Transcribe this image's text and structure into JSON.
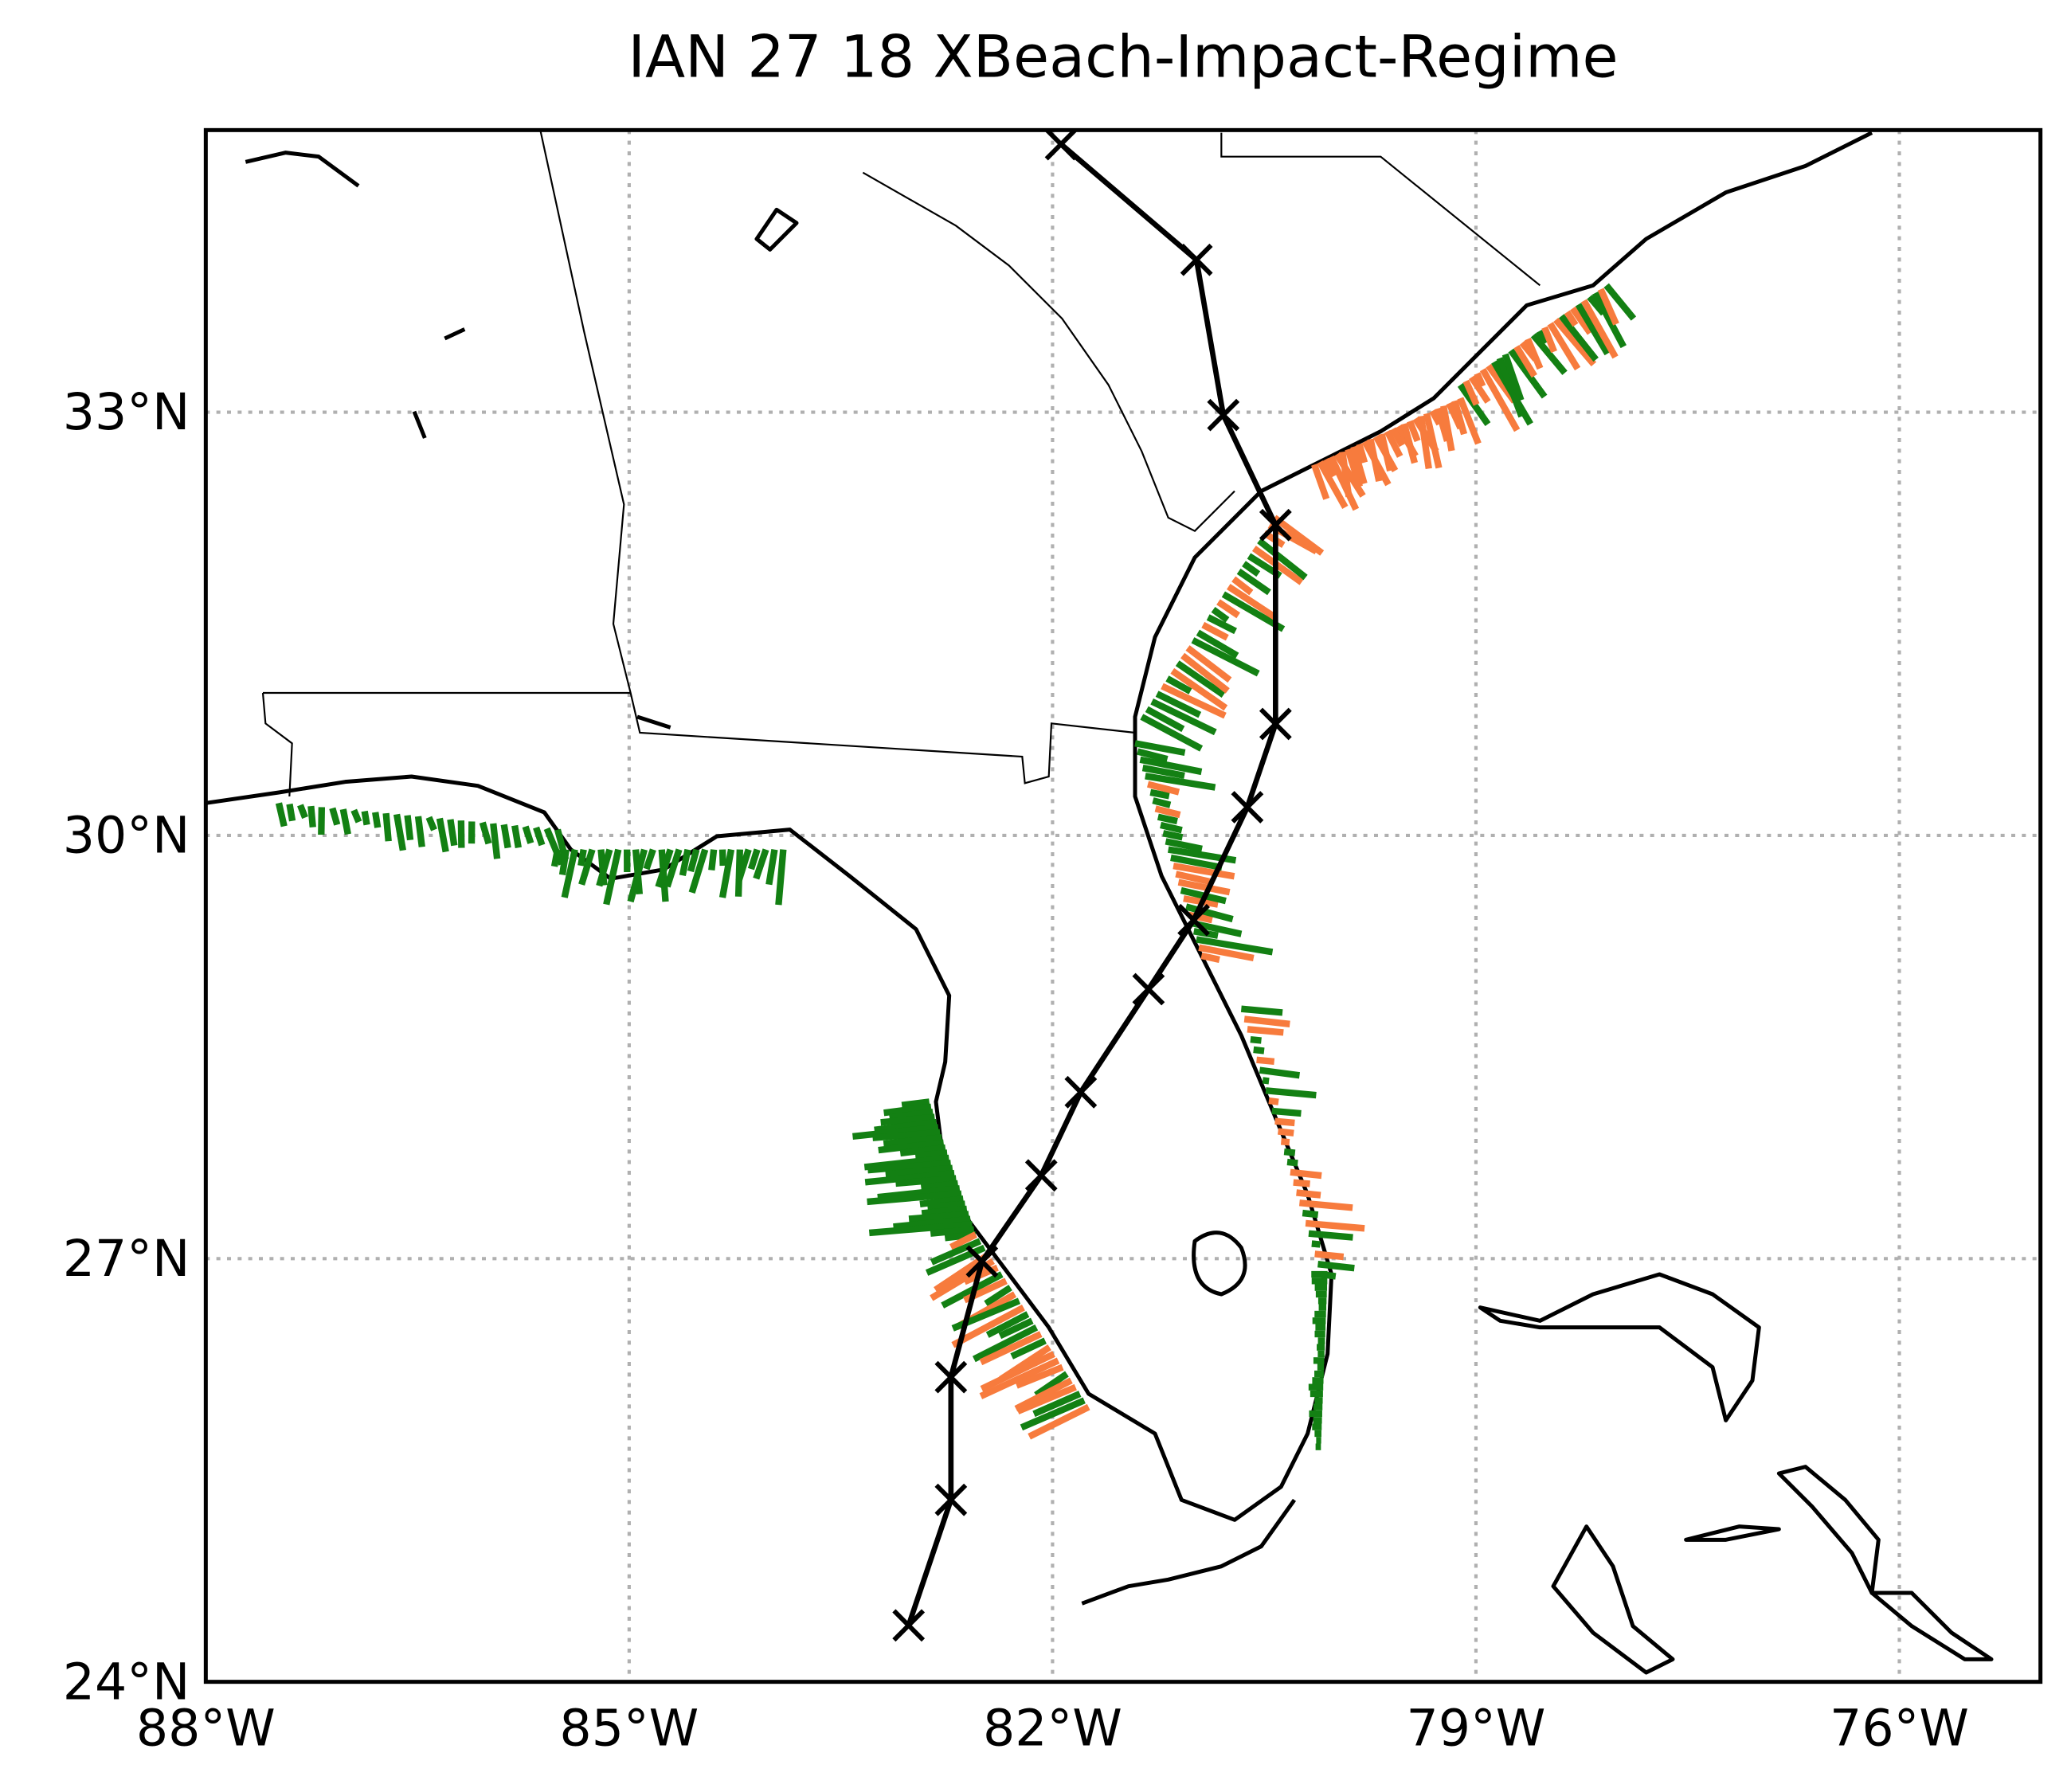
{
  "map": {
    "type": "map",
    "title": "IAN 27 18 XBeach-Impact-Regime",
    "xlim": [
      -88,
      -75
    ],
    "ylim": [
      24,
      35
    ],
    "xticks": [
      {
        "value": -88,
        "label": "88°W"
      },
      {
        "value": -85,
        "label": "85°W"
      },
      {
        "value": -82,
        "label": "82°W"
      },
      {
        "value": -79,
        "label": "79°W"
      },
      {
        "value": -76,
        "label": "76°W"
      }
    ],
    "yticks": [
      {
        "value": 24,
        "label": "24°N"
      },
      {
        "value": 27,
        "label": "27°N"
      },
      {
        "value": 30,
        "label": "30°N"
      },
      {
        "value": 33,
        "label": "33°N"
      }
    ],
    "grid": true,
    "track": {
      "color": "#000000",
      "lon": [
        -81.94,
        -80.98,
        -80.79,
        -80.42,
        -80.42,
        -80.62,
        -81.0,
        -81.32,
        -81.8,
        -82.08,
        -82.5,
        -82.72,
        -82.72,
        -83.02
      ],
      "lat": [
        34.9,
        34.08,
        32.98,
        32.2,
        30.79,
        30.2,
        29.4,
        28.91,
        28.18,
        27.59,
        26.98,
        26.16,
        25.29,
        24.4
      ]
    }
  }
}
